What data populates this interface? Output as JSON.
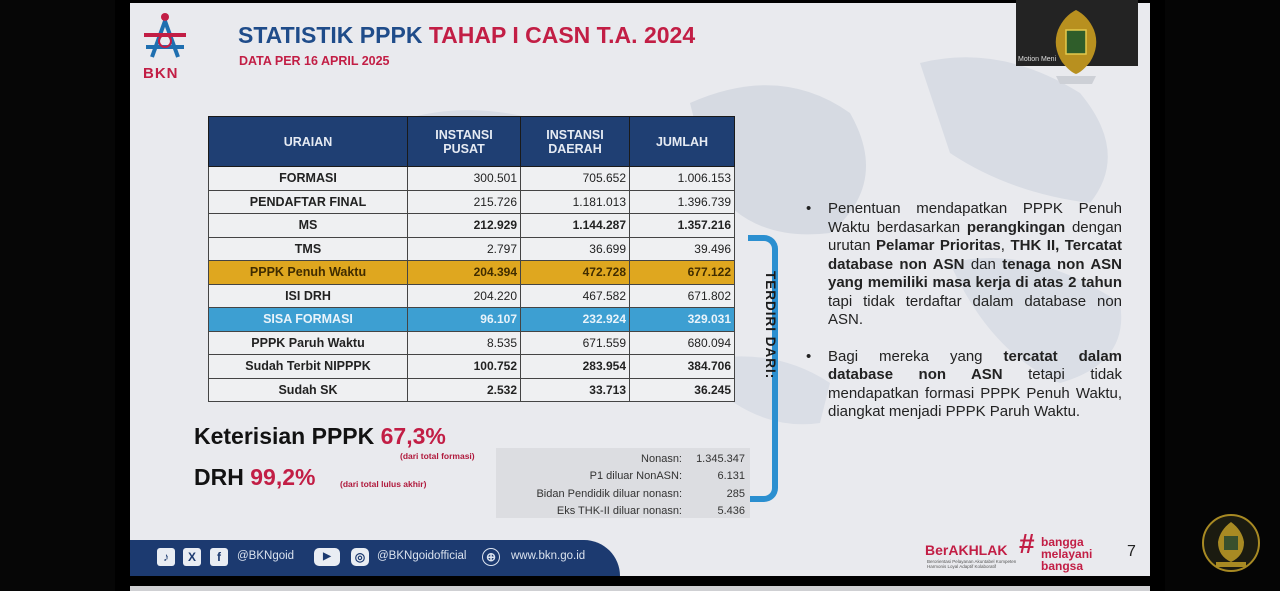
{
  "slide": {
    "logo_text": "BKN",
    "title_part1": "STATISTIK PPPK",
    "title_part2": "TAHAP I CASN T.A. 2024",
    "subtitle": "DATA PER 16 APRIL 2025",
    "table": {
      "headers": [
        "URAIAN",
        "INSTANSI PUSAT",
        "INSTANSI DAERAH",
        "JUMLAH"
      ],
      "rows": [
        {
          "label": "FORMASI",
          "pusat": "300.501",
          "daerah": "705.652",
          "jumlah": "1.006.153"
        },
        {
          "label": "PENDAFTAR FINAL",
          "pusat": "215.726",
          "daerah": "1.181.013",
          "jumlah": "1.396.739"
        },
        {
          "label": "MS",
          "pusat": "212.929",
          "daerah": "1.144.287",
          "jumlah": "1.357.216"
        },
        {
          "label": "TMS",
          "pusat": "2.797",
          "daerah": "36.699",
          "jumlah": "39.496"
        },
        {
          "label": "PPPK Penuh Waktu",
          "pusat": "204.394",
          "daerah": "472.728",
          "jumlah": "677.122"
        },
        {
          "label": "ISI DRH",
          "pusat": "204.220",
          "daerah": "467.582",
          "jumlah": "671.802"
        },
        {
          "label": "SISA FORMASI",
          "pusat": "96.107",
          "daerah": "232.924",
          "jumlah": "329.031"
        },
        {
          "label": "PPPK Paruh Waktu",
          "pusat": "8.535",
          "daerah": "671.559",
          "jumlah": "680.094"
        },
        {
          "label": "Sudah Terbit NIPPPK",
          "pusat": "100.752",
          "daerah": "283.954",
          "jumlah": "384.706"
        },
        {
          "label": "Sudah SK",
          "pusat": "2.532",
          "daerah": "33.713",
          "jumlah": "36.245"
        }
      ]
    },
    "terdiri_dari": "TERDIRI DARI:",
    "keterisian_label": "Keterisian PPPK",
    "keterisian_value": "67,3%",
    "keterisian_note": "(dari total formasi)",
    "drh_label": "DRH",
    "drh_value": "99,2%",
    "drh_note": "(dari total lulus akhir)",
    "breakdown": [
      {
        "label": "Nonasn:",
        "value": "1.345.347"
      },
      {
        "label": "P1 diluar NonASN:",
        "value": "6.131"
      },
      {
        "label": "Bidan Pendidik diluar nonasn:",
        "value": "285"
      },
      {
        "label": "Eks THK-II diluar nonasn:",
        "value": "5.436"
      }
    ],
    "bullet1": {
      "a": "Penentuan mendapatkan PPPK Penuh Waktu berdasarkan",
      "b": "perangkingan",
      "c": "dengan urutan",
      "d": "Pelamar Prioritas",
      "e": ",",
      "f": "THK II, Tercatat database non ASN",
      "g": "dan",
      "h": "tenaga non ASN yang memiliki masa kerja di atas 2 tahun",
      "i": "tapi tidak terdaftar dalam database non ASN."
    },
    "bullet2": {
      "a": "Bagi mereka yang",
      "b": "tercatat dalam database non ASN",
      "c": "tetapi tidak mendapatkan formasi PPPK Penuh Waktu, diangkat menjadi PPPK Paruh Waktu."
    },
    "footer": {
      "handle1": "@BKNgoid",
      "handle2": "@BKNgoidofficial",
      "website": "www.bkn.go.id",
      "berakhlak": "BerAKHLAK",
      "berakhlak_sub": "Berorientasi Pelayanan Akuntabel Kompeten Harmonis Loyal Adaptif Kolaboratif",
      "bangga_line1": "bangga",
      "bangga_line2": "melayani",
      "bangga_line3": "bangsa"
    },
    "page_number": "7"
  },
  "video": {
    "participant_label": "Motion Meni"
  },
  "colors": {
    "navy": "#1f3f73",
    "crimson": "#c21e45",
    "gold": "#dfa71f",
    "sky": "#3d9fd2"
  }
}
